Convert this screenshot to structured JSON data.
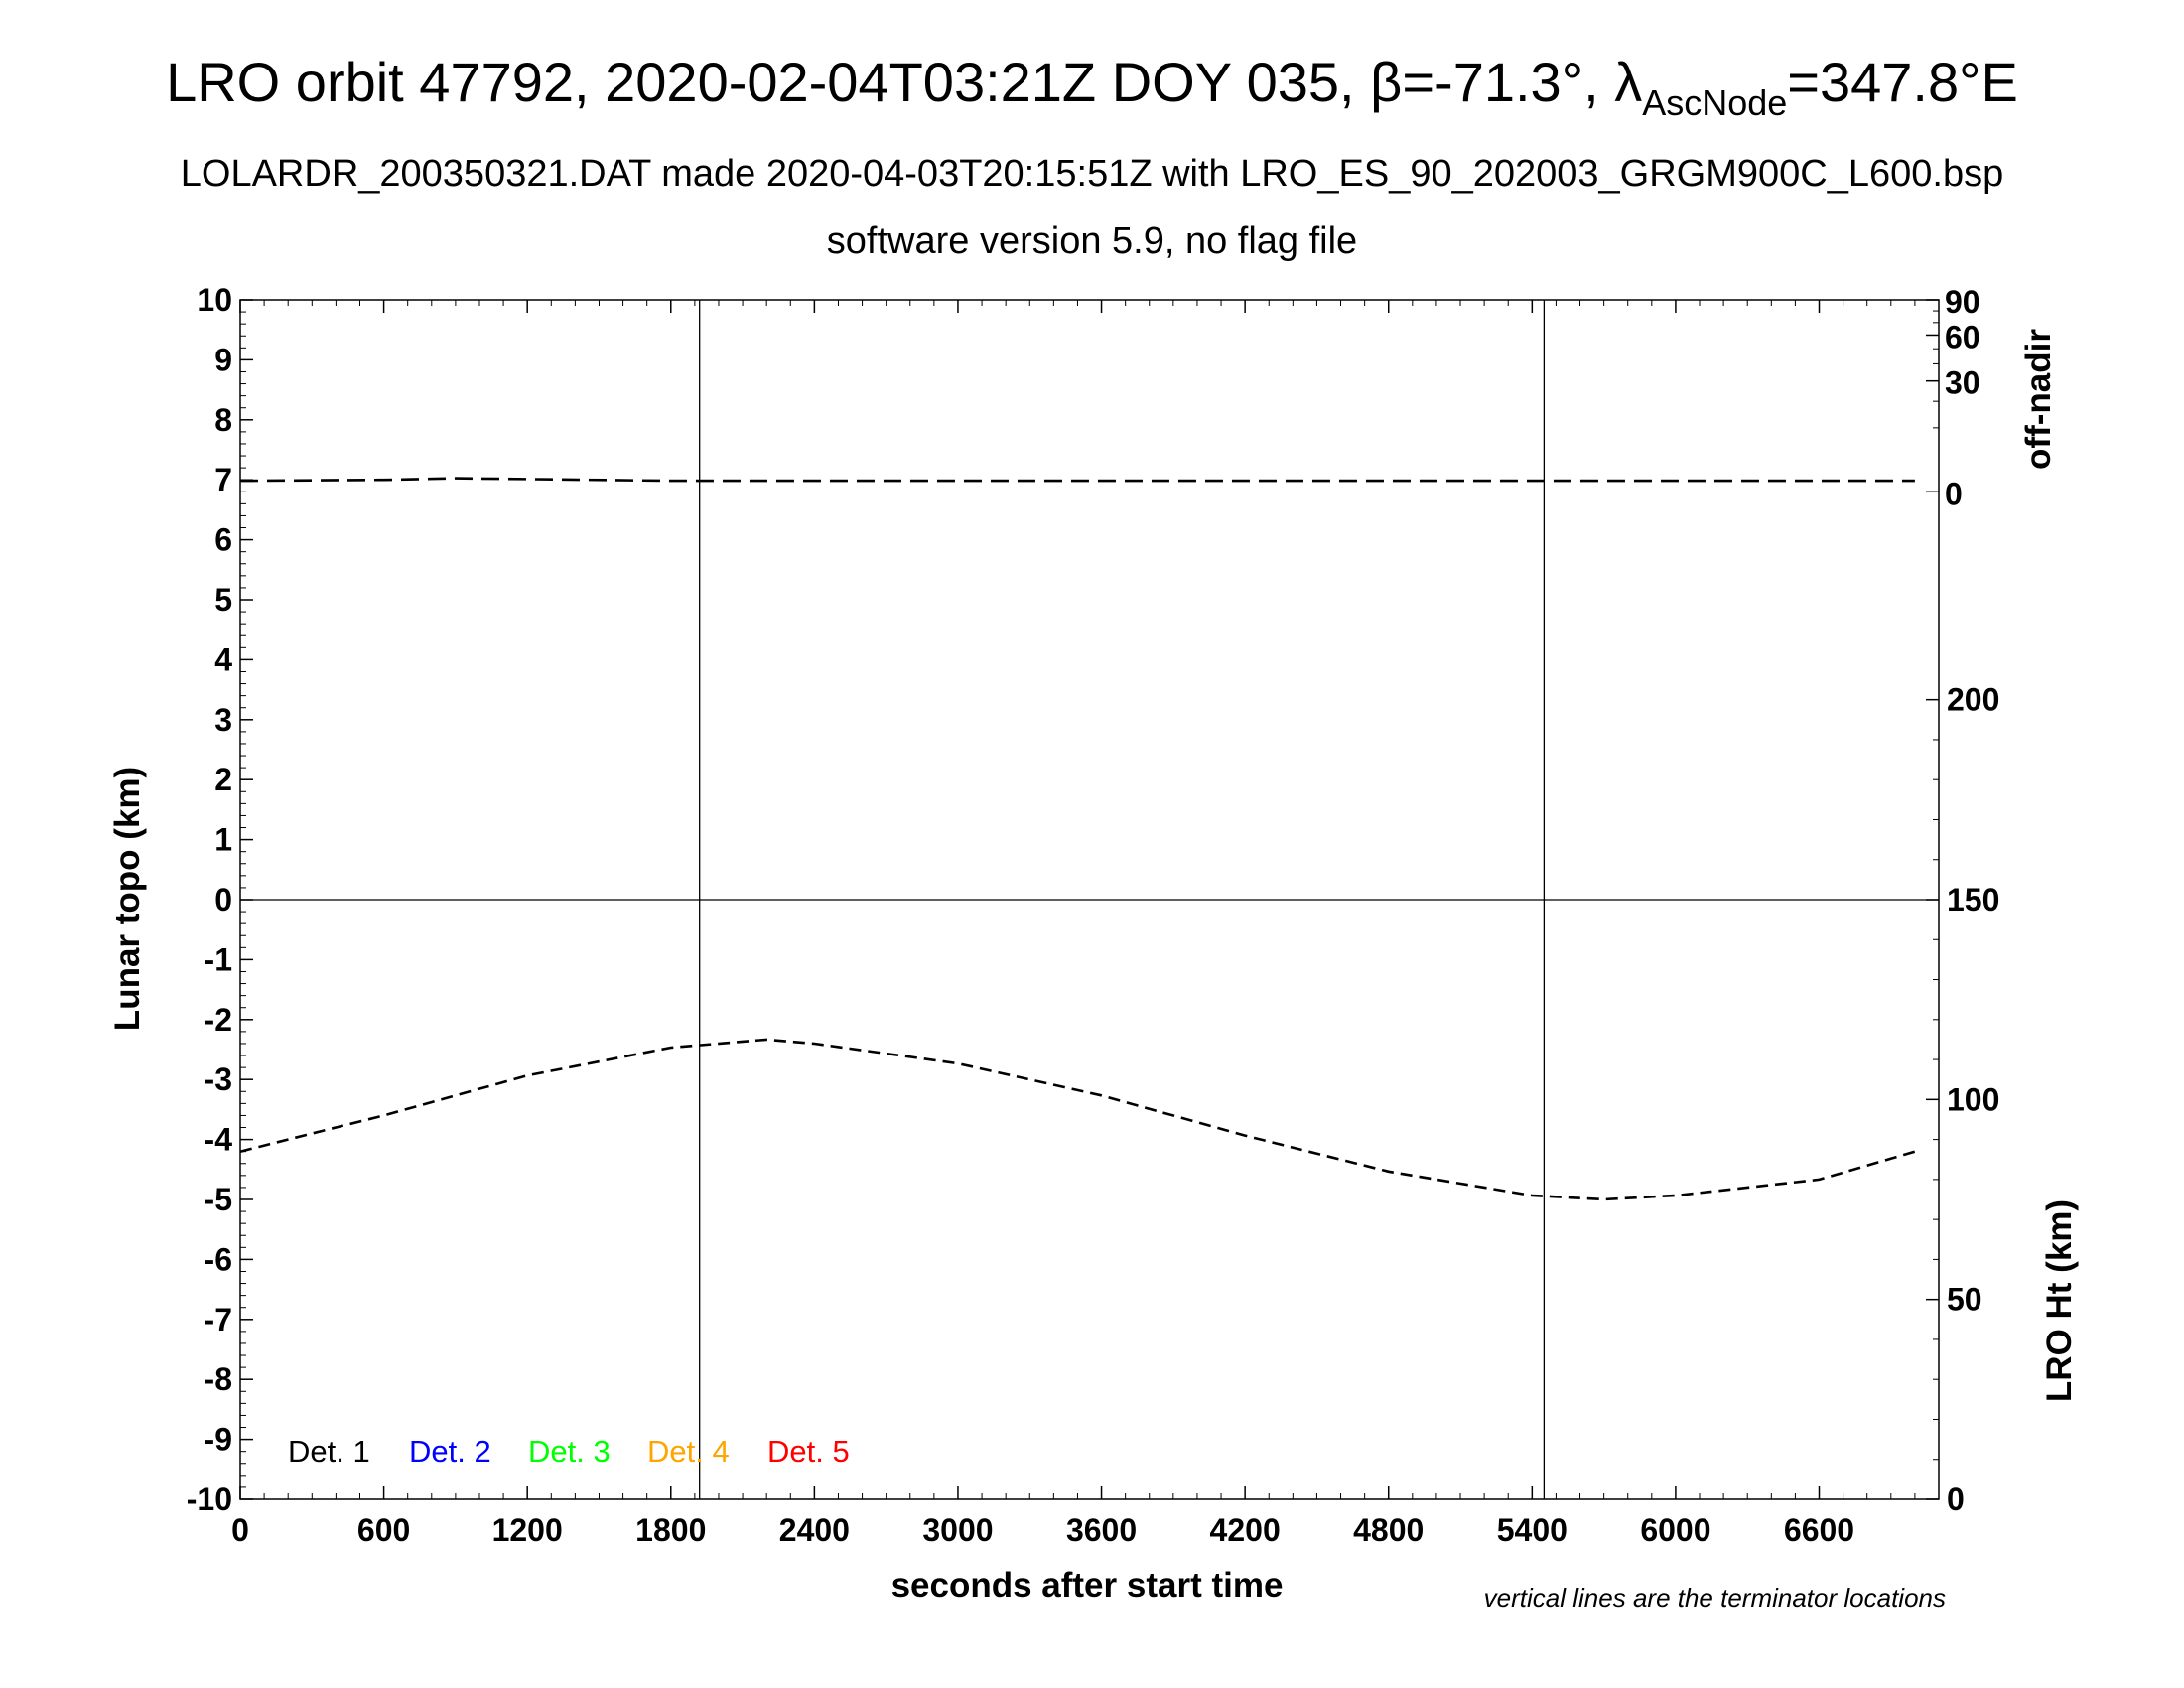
{
  "chart_data": {
    "type": "line",
    "title": {
      "main": "LRO orbit 47792, 2020-02-04T03:21Z DOY 035, β=-71.3°, λ",
      "sub": "AscNode",
      "end": "=347.8°E"
    },
    "subtitle": [
      "LOLARDR_200350321.DAT made 2020-04-03T20:15:51Z with LRO_ES_90_202003_GRGM900C_L600.bsp",
      "software version 5.9, no flag file"
    ],
    "xlabel": "seconds after start time",
    "ylabel_left": "Lunar topo (km)",
    "ylabel_right_top": "off-nadir",
    "ylabel_right_bottom": "LRO Ht (km)",
    "note": "vertical lines are the terminator locations",
    "xlim": [
      0,
      7100
    ],
    "ylim": [
      -10,
      10
    ],
    "x_ticks": [
      0,
      600,
      1200,
      1800,
      2400,
      3000,
      3600,
      4200,
      4800,
      5400,
      6000,
      6600
    ],
    "y_ticks": [
      10,
      9,
      8,
      7,
      6,
      5,
      4,
      3,
      2,
      1,
      0,
      -1,
      -2,
      -3,
      -4,
      -5,
      -6,
      -7,
      -8,
      -9,
      -10
    ],
    "offnadir_ticks": [
      90,
      60,
      30,
      0
    ],
    "ht_ticks": [
      200,
      150,
      100,
      50,
      0
    ],
    "ht_range_km": [
      0,
      300
    ],
    "terminators": [
      1920,
      5450
    ],
    "grid": false,
    "legend": {
      "position": "bottom-left",
      "entries": [
        {
          "label": "Det. 1",
          "color": "#000000"
        },
        {
          "label": "Det. 2",
          "color": "#0000ff"
        },
        {
          "label": "Det. 3",
          "color": "#00ff00"
        },
        {
          "label": "Det. 4",
          "color": "#ffa500"
        },
        {
          "label": "Det. 5",
          "color": "#ff0000"
        }
      ]
    },
    "series": [
      {
        "axis": "off-nadir",
        "style": "dashed",
        "x": [
          0,
          600,
          900,
          1200,
          1800,
          2400,
          3600,
          4800,
          5400,
          6000,
          7000
        ],
        "values": [
          0.3,
          0.35,
          0.45,
          0.4,
          0.3,
          0.3,
          0.3,
          0.3,
          0.3,
          0.3,
          0.3
        ]
      },
      {
        "axis": "LRO Ht",
        "style": "dashed",
        "x": [
          0,
          600,
          1200,
          1800,
          2200,
          2400,
          3000,
          3600,
          4200,
          4800,
          5400,
          5700,
          6000,
          6600,
          7000
        ],
        "values": [
          87,
          96,
          106,
          113,
          115,
          114,
          109,
          101,
          91,
          82,
          76,
          75,
          76,
          80,
          87
        ]
      }
    ]
  }
}
